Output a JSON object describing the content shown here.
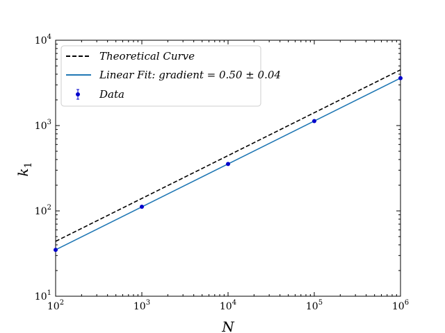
{
  "chart_data": {
    "type": "line",
    "xscale": "log",
    "yscale": "log",
    "xlim": [
      100,
      1000000
    ],
    "ylim": [
      10,
      10000
    ],
    "xlabel": "N",
    "ylabel_base": "k",
    "ylabel_sub": "1",
    "x_ticks": [
      {
        "base": "10",
        "exp": "2",
        "value": 100
      },
      {
        "base": "10",
        "exp": "3",
        "value": 1000
      },
      {
        "base": "10",
        "exp": "4",
        "value": 10000
      },
      {
        "base": "10",
        "exp": "5",
        "value": 100000
      },
      {
        "base": "10",
        "exp": "6",
        "value": 1000000
      }
    ],
    "y_ticks": [
      {
        "base": "10",
        "exp": "1",
        "value": 10
      },
      {
        "base": "10",
        "exp": "2",
        "value": 100
      },
      {
        "base": "10",
        "exp": "3",
        "value": 1000
      },
      {
        "base": "10",
        "exp": "4",
        "value": 10000
      }
    ],
    "series": [
      {
        "name": "Theoretical Curve",
        "style": "dashed",
        "color": "#000000",
        "x": [
          100,
          1000000
        ],
        "y": [
          44,
          4500
        ]
      },
      {
        "name": "Linear Fit: gradient = 0.50 ± 0.04",
        "style": "solid",
        "color": "#1f77b4",
        "x": [
          100,
          1000000
        ],
        "y": [
          35,
          3600
        ]
      },
      {
        "name": "Data",
        "style": "errorbar-points",
        "color": "#0000cc",
        "x": [
          100,
          1000,
          10000,
          100000,
          1000000
        ],
        "y": [
          35,
          112,
          355,
          1130,
          3600
        ]
      }
    ],
    "legend": {
      "placement": "top-left",
      "entries": [
        {
          "text": "Theoretical Curve"
        },
        {
          "text": "Linear Fit: gradient = 0.50 ± 0.04"
        },
        {
          "text": "Data"
        }
      ]
    },
    "grid": false
  }
}
